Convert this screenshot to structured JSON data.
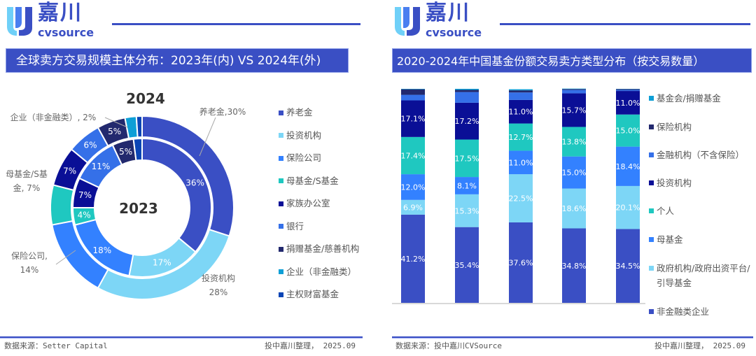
{
  "logo": {
    "cn": "嘉川",
    "en": "cvsource"
  },
  "left": {
    "title": "全球卖方交易规模主体分布：2023年(内) VS 2024年(外)",
    "footer_source": "数据来源：Setter Capital",
    "footer_right": "投中嘉川整理， 2025.09"
  },
  "right": {
    "title": "2020-2024年中国基金份额交易卖方类型分布（按交易数量）",
    "footer_source": "数据来源：投中嘉川CVSource",
    "footer_right": "投中嘉川整理， 2025.09"
  },
  "chart_data": [
    {
      "type": "pie",
      "variant": "double-donut",
      "outer_label": "2024",
      "inner_label": "2023",
      "categories": [
        "养老金",
        "投资机构",
        "保险公司",
        "母基金/S基金",
        "家族办公室",
        "银行",
        "捐赠基金/慈善机构",
        "企业（非金融类）",
        "主权财富基金"
      ],
      "colors": [
        "#3a4fc4",
        "#7dd6f6",
        "#3381ff",
        "#1fc8c0",
        "#0a0f96",
        "#3570e8",
        "#22296e",
        "#0e9fd6",
        "#0b45b5"
      ],
      "series": [
        {
          "name": "2024",
          "values": [
            30,
            28,
            14,
            7,
            7,
            6,
            5,
            2,
            1
          ]
        },
        {
          "name": "2023",
          "values": [
            36,
            17,
            18,
            4,
            7,
            11,
            5,
            0,
            2
          ]
        }
      ],
      "outer_callouts": [
        "养老金,30%",
        "投资机构\n28%",
        "保险公司,\n14%",
        "母基金/S基\n金, 7%",
        "企业（非金融类）, 2%"
      ],
      "legend": "right"
    },
    {
      "type": "bar",
      "stacked": true,
      "ylim": [
        0,
        100
      ],
      "series": [
        {
          "name": "非金融类企业",
          "color": "#3a4fc4",
          "values": [
            41.2,
            35.4,
            37.6,
            34.8,
            34.5
          ],
          "labels": true
        },
        {
          "name": "政府机构/政府出资平台/引导基金",
          "color": "#7dd6f6",
          "values": [
            6.9,
            15.3,
            22.5,
            18.6,
            20.1
          ],
          "labels": true
        },
        {
          "name": "母基金",
          "color": "#3381ff",
          "values": [
            12.0,
            8.1,
            11.0,
            15.0,
            18.4
          ],
          "labels": true
        },
        {
          "name": "个人",
          "color": "#1fc8c0",
          "values": [
            17.4,
            17.5,
            12.7,
            13.8,
            15.0
          ],
          "labels": true
        },
        {
          "name": "投资机构",
          "color": "#0a0f96",
          "values": [
            17.1,
            17.2,
            11.0,
            15.7,
            11.0
          ],
          "labels": true
        },
        {
          "name": "金融机构（不含保险）",
          "color": "#3570e8",
          "values": [
            2.6,
            5.0,
            3.5,
            1.6,
            0.5
          ],
          "labels": false
        },
        {
          "name": "保险机构",
          "color": "#22296e",
          "values": [
            2.6,
            1.0,
            1.0,
            0.4,
            0.4
          ],
          "labels": false
        },
        {
          "name": "基金会/捐赠基金",
          "color": "#0e9fd6",
          "values": [
            0.2,
            0.5,
            0.5,
            0.2,
            0.1
          ],
          "labels": false
        }
      ],
      "legend_order": [
        "基金会/捐赠基金",
        "保险机构",
        "金融机构（不含保险）",
        "投资机构",
        "个人",
        "母基金",
        "政府机构/政府出资平台/引导基金",
        "非金融类企业"
      ],
      "legend": "right"
    }
  ]
}
